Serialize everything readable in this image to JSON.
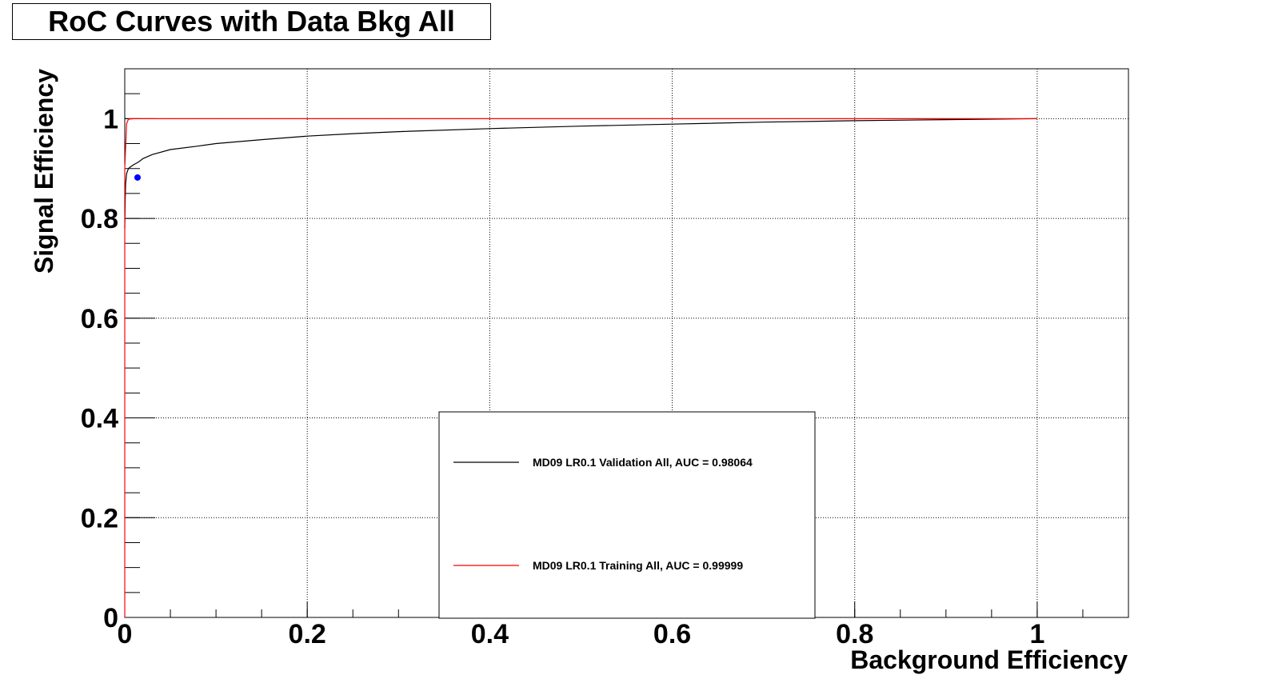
{
  "title": "RoC Curves with Data Bkg All",
  "chart_data": {
    "type": "line",
    "title": "RoC Curves with Data Bkg All",
    "xlabel": "Background Efficiency",
    "ylabel": "Signal Efficiency",
    "xlim": [
      0,
      1.1
    ],
    "ylim": [
      0,
      1.1
    ],
    "x_ticks": [
      "0",
      "0.2",
      "0.4",
      "0.6",
      "0.8",
      "1"
    ],
    "y_ticks": [
      "0",
      "0.2",
      "0.4",
      "0.6",
      "0.8",
      "1"
    ],
    "grid": true,
    "legend_position": "bottom-center",
    "series": [
      {
        "name": "MD09 LR0.1 Validation All, AUC = 0.98064",
        "color": "#000000",
        "x": [
          0,
          0.0005,
          0.001,
          0.002,
          0.004,
          0.006,
          0.01,
          0.015,
          0.02,
          0.03,
          0.05,
          0.08,
          0.1,
          0.15,
          0.2,
          0.25,
          0.3,
          0.4,
          0.5,
          0.6,
          0.7,
          0.8,
          0.9,
          1.0
        ],
        "y": [
          0.78,
          0.84,
          0.87,
          0.89,
          0.9,
          0.903,
          0.908,
          0.913,
          0.92,
          0.928,
          0.938,
          0.945,
          0.95,
          0.958,
          0.965,
          0.97,
          0.974,
          0.98,
          0.985,
          0.989,
          0.993,
          0.996,
          0.998,
          1.0
        ]
      },
      {
        "name": "MD09 LR0.1 Training All, AUC = 0.99999",
        "color": "#ff0000",
        "x": [
          0,
          0.0,
          0.002,
          0.004,
          0.01,
          0.2,
          0.4,
          0.6,
          0.8,
          1.0
        ],
        "y": [
          0,
          0.9,
          0.99,
          0.999,
          1.0,
          1.0,
          1.0,
          1.0,
          1.0,
          1.0
        ]
      }
    ],
    "marker": {
      "x": 0.014,
      "y": 0.882,
      "color": "#0000ff"
    }
  }
}
